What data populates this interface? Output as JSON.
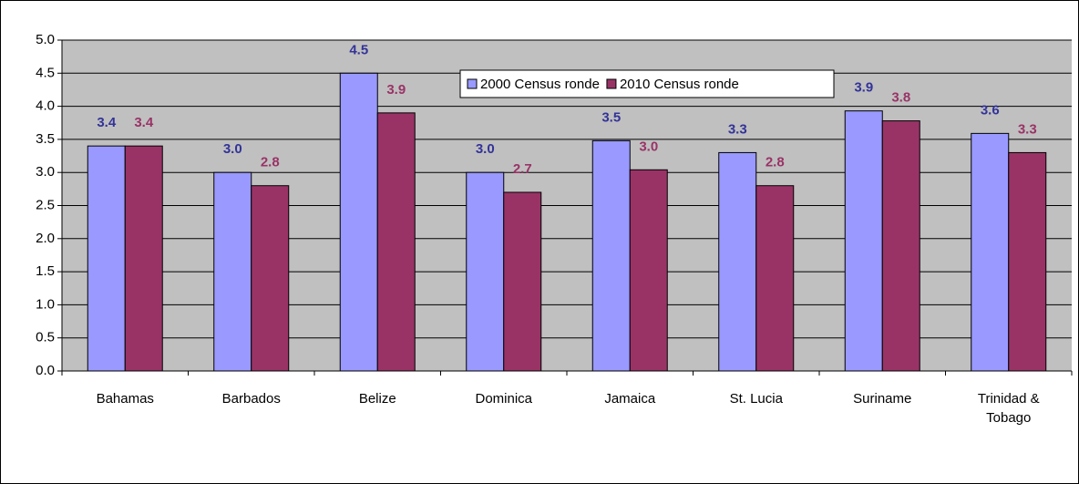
{
  "chart_data": {
    "type": "bar",
    "categories": [
      "Bahamas",
      "Barbados",
      "Belize",
      "Dominica",
      "Jamaica",
      "St. Lucia",
      "Suriname",
      "Trinidad & Tobago"
    ],
    "series": [
      {
        "name": "2000 Census ronde",
        "color": "#9999ff",
        "label_color": "#333399",
        "values": [
          3.4,
          3.0,
          4.5,
          3.0,
          3.48,
          3.3,
          3.93,
          3.59
        ],
        "value_labels": [
          "3.4",
          "3.0",
          "4.5",
          "3.0",
          "3.5",
          "3.3",
          "3.9",
          "3.6"
        ]
      },
      {
        "name": "2010 Census ronde",
        "color": "#993366",
        "label_color": "#993366",
        "values": [
          3.4,
          2.8,
          3.9,
          2.7,
          3.04,
          2.8,
          3.78,
          3.3
        ],
        "value_labels": [
          "3.4",
          "2.8",
          "3.9",
          "2.7",
          "3.0",
          "2.8",
          "3.8",
          "3.3"
        ]
      }
    ],
    "ylim": [
      0,
      5
    ],
    "yticks": [
      {
        "value": 0,
        "label": "0.0"
      },
      {
        "value": 0.5,
        "label": "0.5"
      },
      {
        "value": 1,
        "label": "1.0"
      },
      {
        "value": 1.5,
        "label": "1.5"
      },
      {
        "value": 2,
        "label": "2.0"
      },
      {
        "value": 2.5,
        "label": "2.5"
      },
      {
        "value": 3,
        "label": "3.0"
      },
      {
        "value": 3.5,
        "label": "3.5"
      },
      {
        "value": 4,
        "label": "4.0"
      },
      {
        "value": 4.5,
        "label": "4.5"
      },
      {
        "value": 5,
        "label": "5.0"
      }
    ],
    "grid": true,
    "legend": "top"
  }
}
